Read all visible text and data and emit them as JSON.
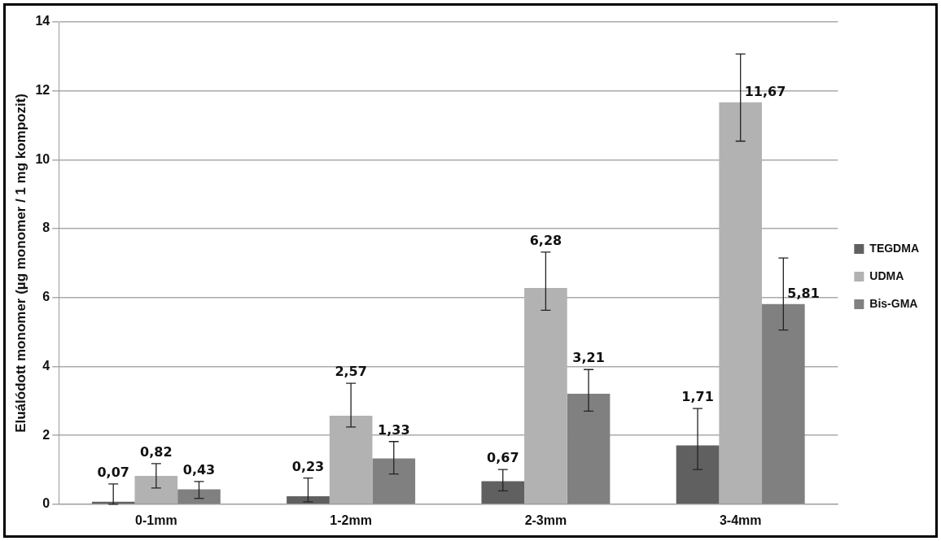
{
  "chart_data": {
    "type": "bar",
    "ylabel": "Eluálódott monomer (µg monomer / 1 mg kompozit)",
    "categories": [
      "0-1mm",
      "1-2mm",
      "2-3mm",
      "3-4mm"
    ],
    "series": [
      {
        "name": "TEGDMA",
        "color": "#606060",
        "values": [
          0.07,
          0.23,
          0.67,
          1.71
        ],
        "value_labels": [
          "0,07",
          "0,23",
          "0,67",
          "1,71"
        ],
        "errors": [
          [
            0,
            0.59
          ],
          [
            0.07,
            0.76
          ],
          [
            0.39,
            1.01
          ],
          [
            1.01,
            2.78
          ]
        ]
      },
      {
        "name": "UDMA",
        "color": "#b2b2b2",
        "values": [
          0.82,
          2.57,
          6.28,
          11.67
        ],
        "value_labels": [
          "0,82",
          "2,57",
          "6,28",
          "11,67"
        ],
        "errors": [
          [
            0.47,
            1.18
          ],
          [
            2.24,
            3.51
          ],
          [
            5.63,
            7.32
          ],
          [
            10.54,
            13.07
          ]
        ]
      },
      {
        "name": "Bis-GMA",
        "color": "#808080",
        "values": [
          0.43,
          1.33,
          3.21,
          5.81
        ],
        "value_labels": [
          "0,43",
          "1,33",
          "3,21",
          "5,81"
        ],
        "errors": [
          [
            0.17,
            0.66
          ],
          [
            0.88,
            1.82
          ],
          [
            2.7,
            3.91
          ],
          [
            5.06,
            7.15
          ]
        ]
      }
    ],
    "ylim": [
      0,
      14
    ],
    "yticks": [
      0,
      2,
      4,
      6,
      8,
      10,
      12,
      14
    ],
    "grid": "y",
    "legend": "right"
  }
}
